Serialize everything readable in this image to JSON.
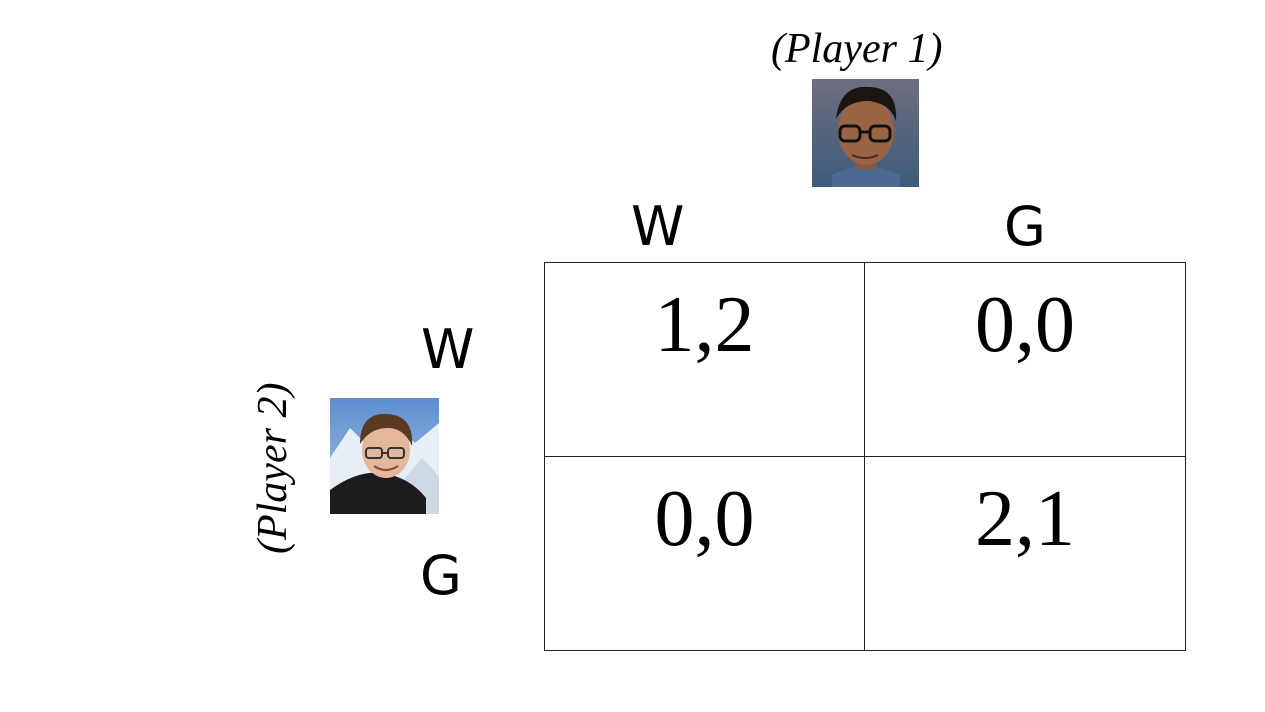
{
  "players": {
    "player1": {
      "label": "(Player 1)",
      "avatar_icon": "player1-photo"
    },
    "player2": {
      "label": "(Player 2)",
      "avatar_icon": "player2-photo"
    }
  },
  "columns": {
    "labels": [
      "W",
      "G"
    ]
  },
  "rows": {
    "labels": [
      "W",
      "G"
    ]
  },
  "payoffs": [
    [
      "1,2",
      "0,0"
    ],
    [
      "0,0",
      "2,1"
    ]
  ]
}
